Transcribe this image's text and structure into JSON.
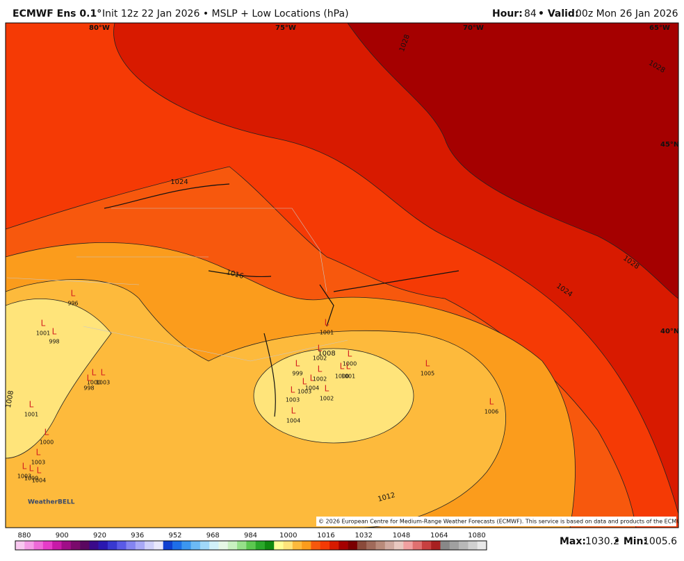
{
  "header": {
    "title": "ECMWF Ens 0.1°",
    "subtitle": "Init 12z 22 Jan 2026 • MSLP + Low Locations (hPa)",
    "hour_label": "Hour:",
    "hour": "84",
    "valid_label": "• Valid:",
    "valid": "00z Mon 26 Jan 2026"
  },
  "map": {
    "grid_labels": [
      "80°W",
      "75°W",
      "70°W",
      "65°W",
      "45°N",
      "40°N"
    ],
    "contour_labels": [
      "1028",
      "1028",
      "1024",
      "1016",
      "1008",
      "1008",
      "1012",
      "1024",
      "1028"
    ],
    "low_symbol": "L",
    "lows": [
      "996",
      "1001",
      "998",
      "1000",
      "1003",
      "998",
      "1001",
      "1000",
      "1003",
      "1003",
      "1000",
      "1004",
      "1001",
      "999",
      "1002",
      "1004",
      "1003",
      "1002",
      "1000",
      "1001",
      "1000",
      "1002",
      "1003",
      "1004",
      "1005",
      "1006"
    ],
    "watermark": "WeatherBELL",
    "copyright": "© 2026 European Centre for Medium-Range Weather Forecasts (ECMWF). This service is based on data and products of the ECMWF."
  },
  "colorbar": {
    "ticks": [
      "880",
      "900",
      "920",
      "936",
      "952",
      "968",
      "984",
      "1000",
      "1016",
      "1032",
      "1048",
      "1064",
      "1080"
    ]
  },
  "stats": {
    "max_label": "Max:",
    "max": "1030.2",
    "min_label": "• Min:",
    "min": "1005.6"
  }
}
